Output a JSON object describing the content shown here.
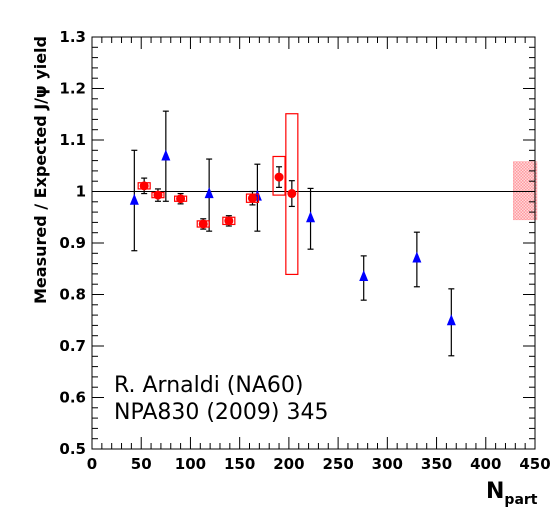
{
  "chart_data": {
    "type": "scatter",
    "ylabel": "Measured / Expected J/ψ yield",
    "xlabel": "N",
    "xlabel_sub": "part",
    "xlim": [
      0,
      450
    ],
    "ylim": [
      0.5,
      1.3
    ],
    "x_ticks": [
      0,
      50,
      100,
      150,
      200,
      250,
      300,
      350,
      400,
      450
    ],
    "y_ticks": [
      0.5,
      0.6,
      0.7,
      0.8,
      0.9,
      1,
      1.1,
      1.2,
      1.3
    ],
    "x_tick_labels": [
      "0",
      "50",
      "100",
      "150",
      "200",
      "250",
      "300",
      "350",
      "400",
      "450"
    ],
    "y_tick_labels": [
      "0.5",
      "0.6",
      "0.7",
      "0.8",
      "0.9",
      "1",
      "1.1",
      "1.2",
      "1.3"
    ],
    "reference_line": 1.0,
    "colors": {
      "blue": "#0000ff",
      "red": "#ff0000",
      "band": "#ff9aa0"
    },
    "series": [
      {
        "marker": "triangle",
        "color": "#0000ff",
        "points": [
          {
            "x": 43,
            "y": 0.98,
            "err_lo": 0.095,
            "err_hi": 0.1
          },
          {
            "x": 75,
            "y": 1.066,
            "err_lo": 0.085,
            "err_hi": 0.09
          },
          {
            "x": 119,
            "y": 0.993,
            "err_lo": 0.07,
            "err_hi": 0.07
          },
          {
            "x": 168,
            "y": 0.988,
            "err_lo": 0.065,
            "err_hi": 0.065
          },
          {
            "x": 222,
            "y": 0.946,
            "err_lo": 0.058,
            "err_hi": 0.06
          },
          {
            "x": 276,
            "y": 0.832,
            "err_lo": 0.043,
            "err_hi": 0.043
          },
          {
            "x": 330,
            "y": 0.868,
            "err_lo": 0.053,
            "err_hi": 0.053
          },
          {
            "x": 365,
            "y": 0.746,
            "err_lo": 0.065,
            "err_hi": 0.065
          }
        ]
      },
      {
        "marker": "circle",
        "color": "#ff0000",
        "points": [
          {
            "x": 53,
            "y": 1.011,
            "err_lo": 0.015,
            "err_hi": 0.015,
            "sys_lo": 0.006,
            "sys_hi": 0.006
          },
          {
            "x": 67,
            "y": 0.993,
            "err_lo": 0.012,
            "err_hi": 0.012,
            "sys_lo": 0.005,
            "sys_hi": 0.005
          },
          {
            "x": 90,
            "y": 0.986,
            "err_lo": 0.01,
            "err_hi": 0.01,
            "sys_lo": 0.005,
            "sys_hi": 0.005
          },
          {
            "x": 113,
            "y": 0.937,
            "err_lo": 0.01,
            "err_hi": 0.01,
            "sys_lo": 0.006,
            "sys_hi": 0.006
          },
          {
            "x": 139,
            "y": 0.943,
            "err_lo": 0.01,
            "err_hi": 0.01,
            "sys_lo": 0.007,
            "sys_hi": 0.007
          },
          {
            "x": 163,
            "y": 0.987,
            "err_lo": 0.013,
            "err_hi": 0.013,
            "sys_lo": 0.008,
            "sys_hi": 0.008
          },
          {
            "x": 190,
            "y": 1.028,
            "err_lo": 0.02,
            "err_hi": 0.02,
            "sys_lo": 0.035,
            "sys_hi": 0.04
          },
          {
            "x": 203,
            "y": 0.996,
            "err_lo": 0.025,
            "err_hi": 0.025,
            "sys_lo": 0.157,
            "sys_hi": 0.155
          }
        ]
      }
    ],
    "global_uncertainty_band": {
      "x": [
        428,
        452
      ],
      "y": [
        0.945,
        1.058
      ]
    },
    "annotations": [
      "R. Arnaldi (NA60)",
      "NPA830 (2009) 345"
    ]
  }
}
